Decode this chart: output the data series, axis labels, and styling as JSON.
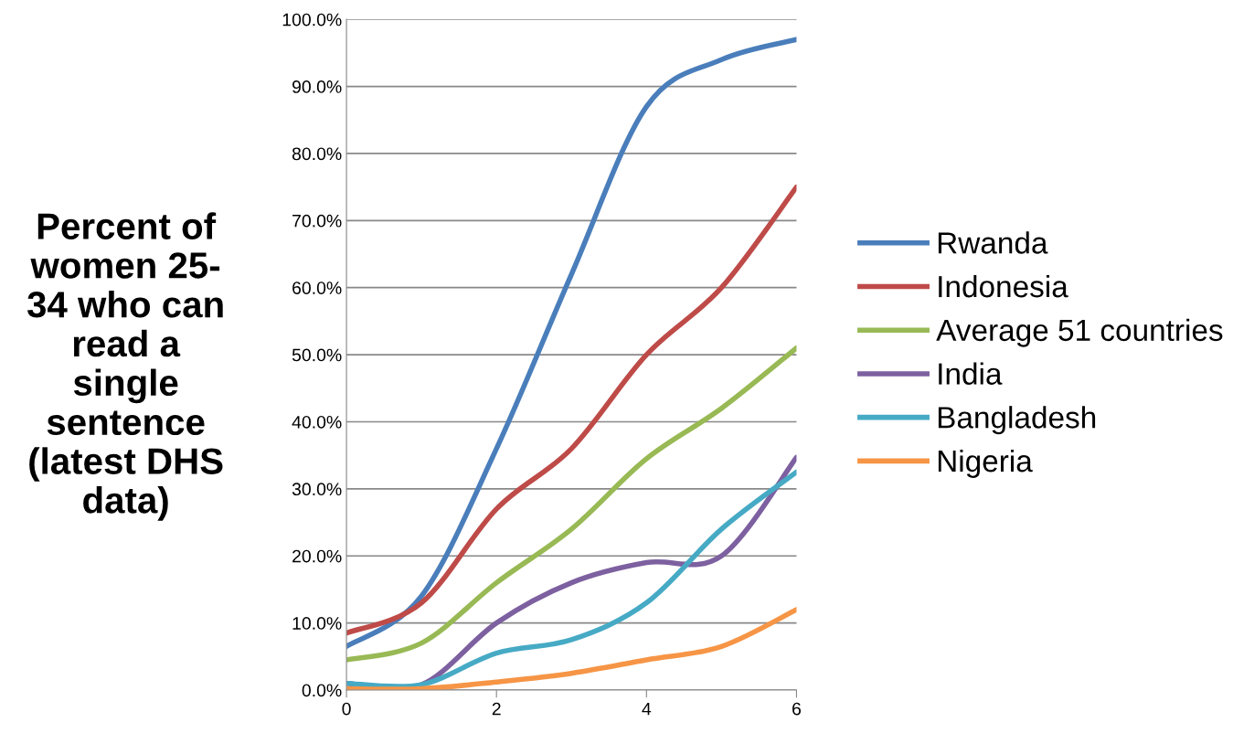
{
  "chart_data": {
    "type": "line",
    "ylabel": "Percent of\nwomen 25-\n34 who can\nread a\nsingle\nsentence\n(latest DHS\ndata)",
    "x": [
      0,
      1,
      2,
      3,
      4,
      5,
      6
    ],
    "xlim": [
      0,
      6
    ],
    "xticks": [
      0,
      2,
      4,
      6
    ],
    "ylim": [
      0,
      100
    ],
    "yticks": [
      {
        "value": 0,
        "label": "0.0%"
      },
      {
        "value": 10,
        "label": "10.0%"
      },
      {
        "value": 20,
        "label": "20.0%"
      },
      {
        "value": 30,
        "label": "30.0%"
      },
      {
        "value": 40,
        "label": "40.0%"
      },
      {
        "value": 50,
        "label": "50.0%"
      },
      {
        "value": 60,
        "label": "60.0%"
      },
      {
        "value": 70,
        "label": "70.0%"
      },
      {
        "value": 80,
        "label": "80.0%"
      },
      {
        "value": 90,
        "label": "90.0%"
      },
      {
        "value": 100,
        "label": "100.0%"
      }
    ],
    "grid": "y",
    "legend": "right",
    "marker": "none",
    "line_style": "solid",
    "series": [
      {
        "name": "Rwanda",
        "color": "#4a7ebb",
        "values": [
          6.5,
          14,
          36,
          62,
          87,
          94,
          97
        ]
      },
      {
        "name": "Indonesia",
        "color": "#be4b48",
        "values": [
          8.5,
          13,
          27,
          36,
          50,
          60,
          75
        ]
      },
      {
        "name": "Average 51 countries",
        "color": "#98b954",
        "values": [
          4.5,
          7,
          16,
          24,
          34.5,
          42,
          51
        ]
      },
      {
        "name": "India",
        "color": "#7d60a0",
        "values": [
          1,
          0.8,
          10,
          16,
          19,
          20,
          34.7
        ]
      },
      {
        "name": "Bangladesh",
        "color": "#46aac5",
        "values": [
          1,
          0.8,
          5.5,
          7.5,
          13,
          24,
          32.5
        ]
      },
      {
        "name": "Nigeria",
        "color": "#f69546",
        "values": [
          0.2,
          0.2,
          1.2,
          2.5,
          4.5,
          6.5,
          12
        ]
      }
    ]
  }
}
